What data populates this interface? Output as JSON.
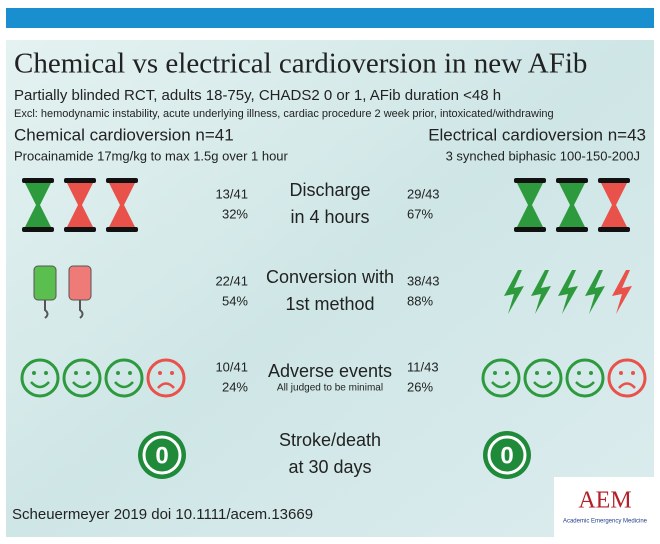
{
  "header": {
    "title": "Chemical vs electrical cardioversion in new AFib",
    "subtitle": "Partially blinded RCT, adults 18-75y, CHADS2 0 or 1, AFib duration <48 h",
    "exclusions": "Excl: hemodynamic instability, acute underlying illness, cardiac procedure 2 week prior, intoxicated/withdrawing"
  },
  "groups": {
    "left": {
      "name": "Chemical cardioversion n=41",
      "description": "Procainamide 17mg/kg to max 1.5g over 1 hour"
    },
    "right": {
      "name": "Electrical cardioversion n=43",
      "description": "3 synched biphasic 100-150-200J"
    }
  },
  "rows": [
    {
      "label_1": "Discharge",
      "label_2": "in 4 hours",
      "left_fraction": "13/41",
      "left_percent": "32%",
      "right_fraction": "29/43",
      "right_percent": "67%"
    },
    {
      "label_1": "Conversion with",
      "label_2": "1st method",
      "left_fraction": "22/41",
      "left_percent": "54%",
      "right_fraction": "38/43",
      "right_percent": "88%"
    },
    {
      "label_1": "Adverse events",
      "note": "All judged to be minimal",
      "left_fraction": "10/41",
      "left_percent": "24%",
      "right_fraction": "11/43",
      "right_percent": "26%"
    },
    {
      "label_1": "Stroke/death",
      "label_2": "at 30 days",
      "left_count": "0",
      "right_count": "0"
    }
  ],
  "footer": {
    "citation": "Scheuermeyer 2019 doi 10.1111/acem.13669",
    "logo": "AEM",
    "logo_subtitle": "Academic Emergency Medicine"
  }
}
